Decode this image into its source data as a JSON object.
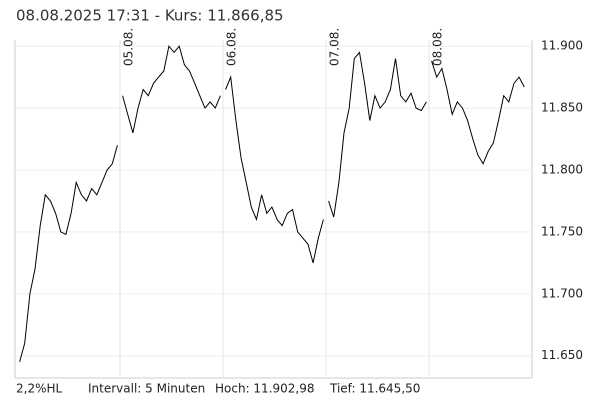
{
  "chart_data": {
    "type": "line",
    "title": "08.08.2025 17:31  -  Kurs: 11.866,85",
    "color": "#000000",
    "ylim": [
      11632,
      11905
    ],
    "yticks": [
      {
        "value": 11650,
        "label": "11.650"
      },
      {
        "value": 11700,
        "label": "11.700"
      },
      {
        "value": 11750,
        "label": "11.750"
      },
      {
        "value": 11800,
        "label": "11.800"
      },
      {
        "value": 11850,
        "label": "11.850"
      },
      {
        "value": 11900,
        "label": "11.900"
      }
    ],
    "grid": true,
    "days": [
      {
        "label": null,
        "values": [
          11645,
          11660,
          11700,
          11720,
          11755,
          11780,
          11775,
          11765,
          11750,
          11748,
          11765,
          11790,
          11780,
          11775,
          11785,
          11780,
          11790,
          11800,
          11805,
          11820
        ]
      },
      {
        "label": "05.08.",
        "values": [
          11860,
          11845,
          11830,
          11850,
          11865,
          11860,
          11870,
          11875,
          11880,
          11900,
          11895,
          11900,
          11885,
          11880,
          11870,
          11860,
          11850,
          11855,
          11850,
          11860
        ]
      },
      {
        "label": "06.08.",
        "values": [
          11865,
          11875,
          11840,
          11810,
          11790,
          11770,
          11760,
          11780,
          11765,
          11770,
          11760,
          11755,
          11765,
          11768,
          11750,
          11745,
          11740,
          11725,
          11745,
          11760
        ]
      },
      {
        "label": "07.08.",
        "values": [
          11775,
          11762,
          11790,
          11830,
          11850,
          11890,
          11895,
          11870,
          11840,
          11860,
          11850,
          11855,
          11865,
          11890,
          11860,
          11855,
          11862,
          11850,
          11848,
          11855
        ]
      },
      {
        "label": "08.08.",
        "values": [
          11888,
          11875,
          11882,
          11865,
          11845,
          11855,
          11850,
          11840,
          11825,
          11812,
          11805,
          11815,
          11822,
          11840,
          11860,
          11855,
          11870,
          11875,
          11867
        ]
      }
    ]
  },
  "footer": [
    "2,2%HL",
    "Intervall: 5 Minuten",
    "Hoch: 11.902,98",
    "Tief: 11.645,50"
  ]
}
